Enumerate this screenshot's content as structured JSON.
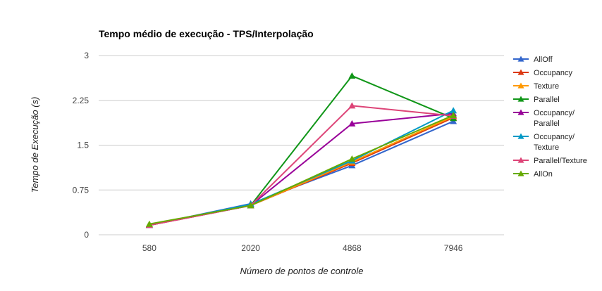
{
  "chart_data": {
    "type": "line",
    "title": "Tempo médio de execução - TPS/Interpolação",
    "xlabel": "Número de pontos de controle",
    "ylabel": "Tempo de Execução (s)",
    "categories": [
      "580",
      "2020",
      "4868",
      "7946"
    ],
    "ylim": [
      0,
      3
    ],
    "yticks": [
      "0",
      "0.75",
      "1.5",
      "2.25",
      "3"
    ],
    "grid": true,
    "legend_position": "right",
    "series": [
      {
        "name": "AllOff",
        "color": "#3366cc",
        "values": [
          0.16,
          0.52,
          1.16,
          1.9
        ]
      },
      {
        "name": "Occupancy",
        "color": "#dc3912",
        "values": [
          0.16,
          0.49,
          1.2,
          1.96
        ]
      },
      {
        "name": "Texture",
        "color": "#ff9900",
        "values": [
          0.16,
          0.49,
          1.22,
          1.98
        ]
      },
      {
        "name": "Parallel",
        "color": "#109618",
        "values": [
          0.17,
          0.49,
          2.66,
          1.95
        ]
      },
      {
        "name": "Occupancy/ Parallel",
        "color": "#990099",
        "values": [
          0.16,
          0.49,
          1.86,
          2.03
        ]
      },
      {
        "name": "Occupancy/ Texture",
        "color": "#0099c6",
        "values": [
          0.16,
          0.51,
          1.24,
          2.08
        ]
      },
      {
        "name": "Parallel/Texture",
        "color": "#dd4477",
        "values": [
          0.16,
          0.49,
          2.16,
          1.99
        ]
      },
      {
        "name": "AllOn",
        "color": "#66aa00",
        "values": [
          0.18,
          0.49,
          1.27,
          2.0
        ]
      }
    ]
  }
}
